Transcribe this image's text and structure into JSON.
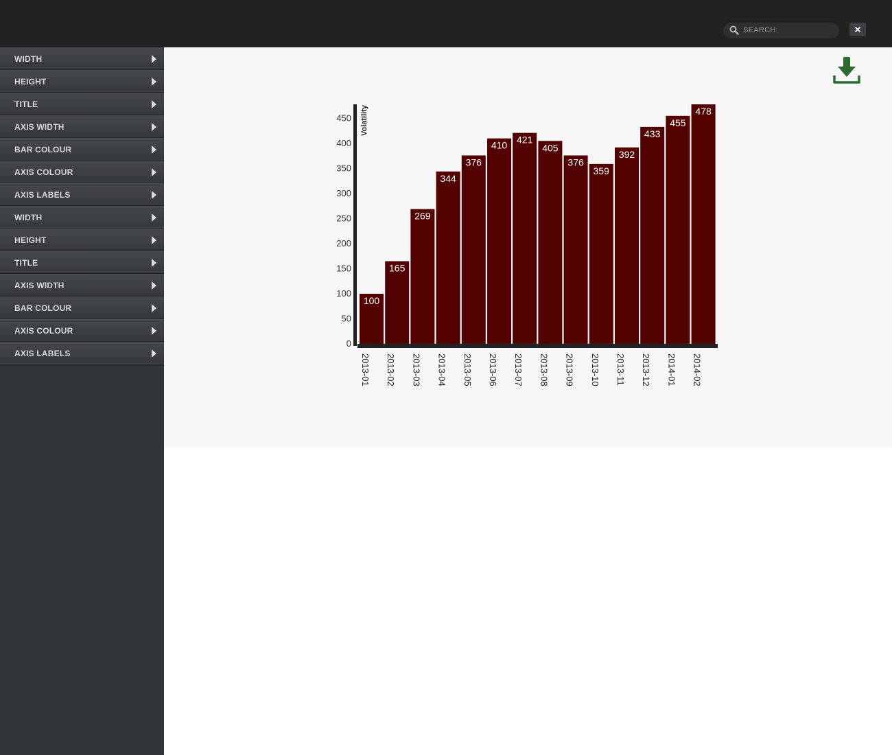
{
  "header": {
    "search": {
      "placeholder": "SEARCH",
      "value": ""
    },
    "icons": {
      "search": "search-icon",
      "close": "close-icon"
    }
  },
  "sidebar": {
    "items": [
      {
        "label": "WIDTH"
      },
      {
        "label": "HEIGHT"
      },
      {
        "label": "TITLE"
      },
      {
        "label": "AXIS WIDTH"
      },
      {
        "label": "BAR COLOUR"
      },
      {
        "label": "AXIS COLOUR"
      },
      {
        "label": "AXIS LABELS"
      },
      {
        "label": "WIDTH"
      },
      {
        "label": "HEIGHT"
      },
      {
        "label": "TITLE"
      },
      {
        "label": "AXIS WIDTH"
      },
      {
        "label": "BAR COLOUR"
      },
      {
        "label": "AXIS COLOUR"
      },
      {
        "label": "AXIS LABELS"
      }
    ]
  },
  "main": {
    "download_icon": "download-icon",
    "download_color": "#2e6b2e"
  },
  "chart_data": {
    "type": "bar",
    "title": "",
    "xlabel": "",
    "ylabel": "Volatility",
    "categories": [
      "2013-01",
      "2013-02",
      "2013-03",
      "2013-04",
      "2013-05",
      "2013-06",
      "2013-07",
      "2013-08",
      "2013-09",
      "2013-10",
      "2013-11",
      "2013-12",
      "2014-01",
      "2014-02"
    ],
    "values": [
      100,
      165,
      269,
      344,
      376,
      410,
      421,
      405,
      376,
      359,
      392,
      433,
      455,
      478
    ],
    "ylim": [
      0,
      478
    ],
    "yticks": [
      0,
      50,
      100,
      150,
      200,
      250,
      300,
      350,
      400,
      450
    ],
    "bar_color": "#520000",
    "axis_color": "#222222",
    "label_color": "#ffffff",
    "grid": false
  }
}
